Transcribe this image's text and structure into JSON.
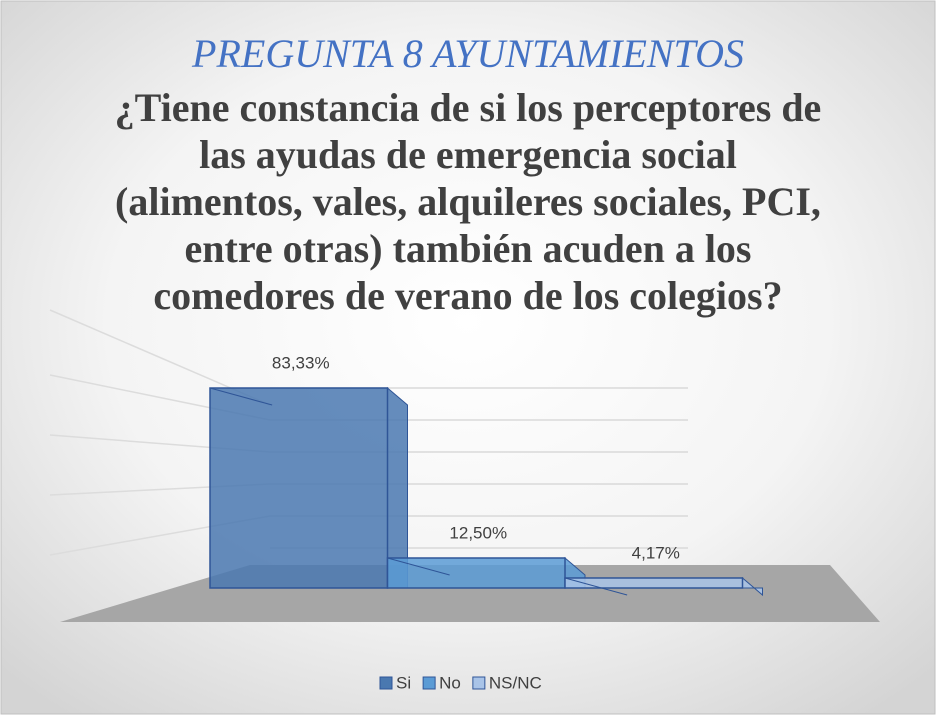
{
  "chart_data": {
    "type": "bar3d",
    "title": "PREGUNTA 8 AYUNTAMIENTOS",
    "subtitle": "¿Tiene constancia de si los perceptores de las ayudas de emergencia social (alimentos, vales, alquileres sociales, PCI, entre otras) también acuden a los comedores de verano de los colegios?",
    "series": [
      {
        "name": "Si",
        "color": "#4a78b0",
        "values": [
          83.33
        ],
        "value_labels": [
          "83,33%"
        ]
      },
      {
        "name": "No",
        "color": "#5b9bd5",
        "values": [
          12.5
        ],
        "value_labels": [
          "12,50%"
        ]
      },
      {
        "name": "NS/NC",
        "color": "#a9c4e8",
        "values": [
          4.17
        ],
        "value_labels": [
          "4,17%"
        ]
      }
    ],
    "ylim": [
      0,
      90
    ]
  }
}
